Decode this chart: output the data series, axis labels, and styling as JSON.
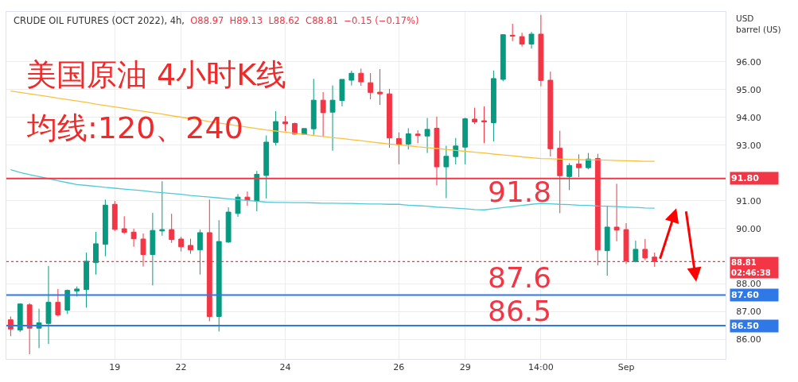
{
  "chart_data": {
    "type": "candlestick",
    "title": "CRUDE OIL FUTURES (OCT 2022), 4h,",
    "subtitle": "O88.97  H89.13  L88.62  C88.81  −0.15 (−0.17%)",
    "ylabel": "USD\nbarrel (US)",
    "categories": [
      null,
      null,
      null,
      null,
      null,
      null,
      null,
      null,
      null,
      null,
      null,
      "19",
      null,
      null,
      null,
      null,
      null,
      null,
      "22",
      null,
      null,
      null,
      null,
      null,
      null,
      null,
      null,
      null,
      null,
      "24",
      null,
      null,
      null,
      null,
      null,
      null,
      null,
      null,
      null,
      null,
      null,
      "26",
      null,
      null,
      null,
      null,
      null,
      null,
      "29",
      null,
      null,
      null,
      null,
      null,
      null,
      null,
      "14:00",
      null,
      null,
      null,
      null,
      null,
      null,
      null,
      null,
      "Sep",
      null,
      null,
      null
    ],
    "ohlc": [
      [
        86.71,
        86.83,
        86.12,
        86.38
      ],
      [
        86.34,
        87.3,
        86.27,
        87.28
      ],
      [
        87.25,
        87.31,
        85.47,
        86.41
      ],
      [
        86.41,
        87.11,
        85.69,
        86.6
      ],
      [
        86.58,
        88.65,
        85.84,
        87.34
      ],
      [
        87.34,
        87.82,
        86.83,
        86.89
      ],
      [
        87.06,
        87.8,
        86.92,
        87.77
      ],
      [
        87.75,
        87.91,
        87.55,
        87.82
      ],
      [
        87.8,
        89.13,
        87.15,
        88.82
      ],
      [
        88.77,
        89.88,
        88.34,
        89.45
      ],
      [
        89.43,
        91.04,
        89.0,
        90.84
      ],
      [
        90.87,
        90.99,
        89.91,
        89.97
      ],
      [
        89.99,
        90.44,
        89.8,
        89.86
      ],
      [
        89.87,
        89.99,
        89.34,
        89.63
      ],
      [
        89.62,
        89.82,
        88.63,
        89.06
      ],
      [
        89.06,
        90.56,
        87.95,
        89.93
      ],
      [
        89.91,
        91.7,
        89.74,
        89.96
      ],
      [
        89.96,
        90.53,
        89.48,
        89.6
      ],
      [
        89.62,
        89.7,
        89.17,
        89.34
      ],
      [
        89.39,
        89.63,
        89.09,
        89.23
      ],
      [
        89.23,
        89.96,
        88.34,
        89.85
      ],
      [
        89.85,
        91.04,
        86.66,
        86.83
      ],
      [
        86.83,
        90.3,
        86.29,
        89.53
      ],
      [
        89.51,
        90.76,
        89.48,
        90.59
      ],
      [
        90.54,
        91.24,
        90.42,
        91.13
      ],
      [
        91.13,
        91.33,
        90.82,
        91.02
      ],
      [
        90.99,
        92.07,
        90.62,
        91.95
      ],
      [
        91.91,
        93.35,
        91.08,
        93.11
      ],
      [
        93.1,
        94.23,
        92.99,
        93.85
      ],
      [
        93.84,
        94.05,
        93.51,
        93.77
      ],
      [
        93.78,
        93.81,
        93.38,
        93.4
      ],
      [
        93.39,
        93.6,
        93.39,
        93.6
      ],
      [
        93.59,
        95.39,
        93.37,
        94.62
      ],
      [
        94.62,
        94.91,
        93.31,
        94.17
      ],
      [
        94.19,
        95.15,
        92.8,
        94.62
      ],
      [
        94.61,
        95.37,
        94.4,
        95.37
      ],
      [
        95.34,
        95.68,
        95.15,
        95.59
      ],
      [
        95.59,
        95.76,
        95.14,
        95.28
      ],
      [
        95.25,
        95.6,
        94.65,
        94.9
      ],
      [
        94.91,
        95.74,
        94.45,
        94.85
      ],
      [
        94.85,
        95.03,
        92.91,
        93.26
      ],
      [
        93.24,
        93.46,
        92.31,
        93.02
      ],
      [
        93.04,
        93.61,
        92.85,
        93.41
      ],
      [
        93.4,
        93.54,
        93.07,
        93.35
      ],
      [
        93.33,
        93.98,
        92.72,
        93.57
      ],
      [
        93.61,
        94.03,
        91.55,
        92.22
      ],
      [
        92.22,
        92.98,
        91.09,
        92.6
      ],
      [
        92.59,
        93.26,
        92.31,
        92.97
      ],
      [
        92.93,
        93.99,
        92.31,
        93.95
      ],
      [
        93.94,
        94.35,
        93.76,
        93.84
      ],
      [
        93.88,
        94.4,
        93.07,
        93.84
      ],
      [
        93.81,
        95.69,
        93.13,
        95.4
      ],
      [
        95.37,
        97.0,
        95.3,
        96.98
      ],
      [
        96.96,
        97.37,
        96.75,
        96.93
      ],
      [
        96.91,
        97.05,
        96.55,
        96.64
      ],
      [
        96.64,
        97.08,
        96.48,
        97.0
      ],
      [
        97.0,
        97.69,
        95.12,
        95.33
      ],
      [
        95.34,
        95.65,
        92.59,
        92.87
      ],
      [
        92.89,
        93.52,
        90.55,
        91.9
      ],
      [
        91.87,
        92.35,
        91.38,
        92.27
      ],
      [
        92.32,
        92.67,
        91.85,
        92.19
      ],
      [
        92.19,
        92.72,
        92.13,
        92.5
      ],
      [
        92.52,
        92.69,
        88.67,
        89.23
      ],
      [
        89.2,
        90.81,
        88.3,
        90.05
      ],
      [
        90.05,
        91.61,
        89.54,
        89.94
      ],
      [
        89.96,
        90.19,
        88.72,
        88.83
      ],
      [
        88.81,
        89.56,
        88.78,
        89.25
      ],
      [
        89.25,
        89.62,
        88.86,
        88.94
      ],
      [
        88.97,
        89.13,
        88.62,
        88.81
      ]
    ],
    "colors": [
      "#f23645",
      "#089981",
      "#f23645",
      "#089981",
      "#089981",
      "#f23645",
      "#089981",
      "#089981",
      "#089981",
      "#089981",
      "#089981",
      "#f23645",
      "#f23645",
      "#f23645",
      "#f23645",
      "#089981",
      "#089981",
      "#f23645",
      "#f23645",
      "#f23645",
      "#089981",
      "#f23645",
      "#089981",
      "#089981",
      "#089981",
      "#f23645",
      "#089981",
      "#089981",
      "#089981",
      "#f23645",
      "#f23645",
      "#089981",
      "#089981",
      "#f23645",
      "#089981",
      "#089981",
      "#089981",
      "#f23645",
      "#f23645",
      "#f23645",
      "#f23645",
      "#f23645",
      "#089981",
      "#f23645",
      "#089981",
      "#f23645",
      "#089981",
      "#089981",
      "#089981",
      "#f23645",
      "#f23645",
      "#089981",
      "#089981",
      "#f23645",
      "#f23645",
      "#089981",
      "#f23645",
      "#f23645",
      "#f23645",
      "#089981",
      "#f23645",
      "#089981",
      "#f23645",
      "#089981",
      "#f23645",
      "#f23645",
      "#089981",
      "#f23645",
      "#f23645"
    ],
    "series": [
      {
        "type": "line",
        "color": "#f9c23c",
        "values": [
          94.95,
          94.9,
          94.85,
          94.8,
          94.75,
          94.69,
          94.64,
          94.59,
          94.54,
          94.48,
          94.43,
          94.38,
          94.33,
          94.27,
          94.22,
          94.17,
          94.12,
          94.06,
          94.01,
          93.96,
          93.91,
          93.85,
          93.8,
          93.75,
          93.7,
          93.65,
          93.6,
          93.55,
          93.51,
          93.47,
          93.43,
          93.39,
          93.35,
          93.31,
          93.27,
          93.24,
          93.2,
          93.16,
          93.12,
          93.08,
          93.04,
          93.01,
          92.98,
          92.94,
          92.91,
          92.88,
          92.85,
          92.81,
          92.78,
          92.75,
          92.72,
          92.68,
          92.65,
          92.62,
          92.58,
          92.55,
          92.52,
          92.51,
          92.5,
          92.49,
          92.48,
          92.47,
          92.47,
          92.46,
          92.45,
          92.44,
          92.43,
          92.42,
          92.42
        ]
      },
      {
        "type": "line",
        "color": "#4fc9da",
        "values": [
          92.12,
          92.02,
          91.94,
          91.87,
          91.8,
          91.72,
          91.65,
          91.58,
          91.55,
          91.52,
          91.48,
          91.45,
          91.42,
          91.39,
          91.36,
          91.32,
          91.29,
          91.26,
          91.23,
          91.19,
          91.16,
          91.13,
          91.1,
          91.07,
          91.04,
          91.01,
          90.98,
          90.95,
          90.94,
          90.94,
          90.93,
          90.93,
          90.92,
          90.91,
          90.91,
          90.9,
          90.9,
          90.89,
          90.88,
          90.88,
          90.87,
          90.87,
          90.84,
          90.82,
          90.8,
          90.77,
          90.75,
          90.73,
          90.71,
          90.68,
          90.67,
          90.71,
          90.75,
          90.79,
          90.83,
          90.87,
          90.9,
          90.89,
          90.87,
          90.86,
          90.84,
          90.83,
          90.81,
          90.8,
          90.79,
          90.77,
          90.76,
          90.74,
          90.73
        ]
      }
    ],
    "ylim": [
      85.3,
      97.8
    ],
    "yticks": [
      {
        "value": 86,
        "label": "86.00"
      },
      {
        "value": 87,
        "label": "87.00"
      },
      {
        "value": 88,
        "label": "88.00"
      },
      {
        "value": 90,
        "label": "90.00"
      },
      {
        "value": 91,
        "label": "91.00"
      },
      {
        "value": 93,
        "label": "93.00"
      },
      {
        "value": 94,
        "label": "94.00"
      },
      {
        "value": 95,
        "label": "95.00"
      },
      {
        "value": 96,
        "label": "96.00"
      }
    ],
    "ref_lines": [
      {
        "axis": "y",
        "value": 91.8,
        "label": "91.80",
        "color": "#f23645",
        "line_style": "solid"
      },
      {
        "axis": "y",
        "value": 87.6,
        "label": "87.60",
        "color": "#2f78e8",
        "line_style": "solid"
      },
      {
        "axis": "y",
        "value": 86.5,
        "label": "86.50",
        "color": "#2f78e8",
        "line_style": "solid"
      },
      {
        "axis": "y",
        "value": 88.81,
        "label": "88.81\n02:46:38",
        "color": "#f23645",
        "line_style": "dotted"
      }
    ],
    "annotations": [
      "美国原油 4小时K线",
      "均线:120、240",
      "91.8",
      "87.6",
      "86.5"
    ],
    "grid": true,
    "marker": "none"
  }
}
